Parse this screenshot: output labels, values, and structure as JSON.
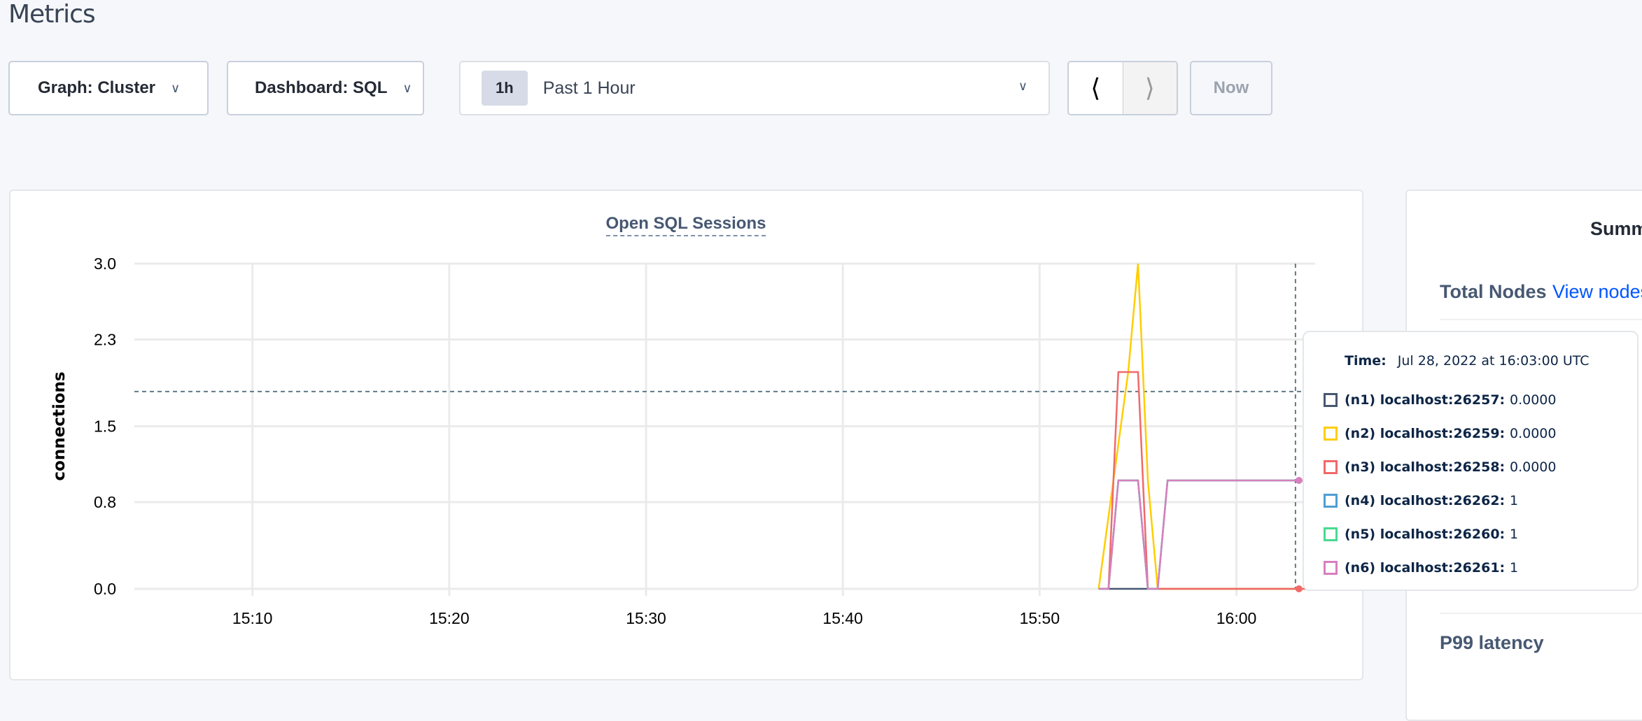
{
  "page": {
    "title": "Metrics"
  },
  "toolbar": {
    "graph_label": "Graph: Cluster",
    "dashboard_label": "Dashboard: SQL",
    "range_badge": "1h",
    "range_label": "Past 1 Hour",
    "prev_icon": "chevron-left-icon",
    "next_icon": "chevron-right-icon",
    "now_label": "Now"
  },
  "chart_data": {
    "type": "line",
    "title": "Open SQL Sessions",
    "ylabel": "connections",
    "xlabel": "",
    "xlim": [
      "15:04",
      "16:04"
    ],
    "ylim": [
      0,
      3
    ],
    "x_ticks": [
      "15:10",
      "15:20",
      "15:30",
      "15:40",
      "15:50",
      "16:00"
    ],
    "y_ticks": [
      "0.0",
      "0.8",
      "1.5",
      "2.3",
      "3.0"
    ],
    "grid": true,
    "hover": {
      "time": "16:03",
      "value": 1.82
    },
    "series": [
      {
        "name": "(n1) localhost:26257",
        "color": "#475872",
        "points": [
          [
            "15:53",
            0
          ],
          [
            "16:04",
            0
          ]
        ]
      },
      {
        "name": "(n2) localhost:26259",
        "color": "#FFCD02",
        "points": [
          [
            "15:53",
            0
          ],
          [
            "15:54:30",
            2
          ],
          [
            "15:55",
            3
          ],
          [
            "15:55:30",
            1
          ],
          [
            "15:56",
            0
          ],
          [
            "16:04",
            0
          ]
        ]
      },
      {
        "name": "(n3) localhost:26258",
        "color": "#F16969",
        "points": [
          [
            "15:53",
            0
          ],
          [
            "15:53:30",
            0
          ],
          [
            "15:54",
            2
          ],
          [
            "15:55",
            2
          ],
          [
            "15:55:30",
            0
          ],
          [
            "16:04",
            0
          ]
        ]
      },
      {
        "name": "(n4) localhost:26262",
        "color": "#4E9FD1",
        "points": [
          [
            "15:53",
            0
          ],
          [
            "15:53:30",
            0
          ],
          [
            "15:54",
            1
          ],
          [
            "15:55",
            1
          ],
          [
            "15:55:30",
            0
          ],
          [
            "15:56",
            0
          ],
          [
            "15:56:30",
            1
          ],
          [
            "16:04",
            1
          ]
        ]
      },
      {
        "name": "(n5) localhost:26260",
        "color": "#49D990",
        "points": [
          [
            "15:53",
            0
          ],
          [
            "15:53:30",
            0
          ],
          [
            "15:54",
            1
          ],
          [
            "15:55",
            1
          ],
          [
            "15:55:30",
            0
          ],
          [
            "15:56",
            0
          ],
          [
            "15:56:30",
            1
          ],
          [
            "16:04",
            1
          ]
        ]
      },
      {
        "name": "(n6) localhost:26261",
        "color": "#D77FBF",
        "points": [
          [
            "15:53",
            0
          ],
          [
            "15:53:30",
            0
          ],
          [
            "15:54",
            1
          ],
          [
            "15:55",
            1
          ],
          [
            "15:55:30",
            0
          ],
          [
            "15:56",
            0
          ],
          [
            "15:56:30",
            1
          ],
          [
            "16:04",
            1
          ]
        ]
      }
    ]
  },
  "tooltip": {
    "time_label": "Time:",
    "time_value": "Jul 28, 2022 at 16:03:00 UTC",
    "rows": [
      {
        "name": "(n1) localhost:26257:",
        "value": "0.0000",
        "color": "#475872"
      },
      {
        "name": "(n2) localhost:26259:",
        "value": "0.0000",
        "color": "#FFCD02"
      },
      {
        "name": "(n3) localhost:26258:",
        "value": "0.0000",
        "color": "#F16969"
      },
      {
        "name": "(n4) localhost:26262:",
        "value": "1",
        "color": "#4E9FD1"
      },
      {
        "name": "(n5) localhost:26260:",
        "value": "1",
        "color": "#49D990"
      },
      {
        "name": "(n6) localhost:26261:",
        "value": "1",
        "color": "#D77FBF"
      }
    ]
  },
  "summary": {
    "title": "Summ",
    "total_nodes_label": "Total Nodes",
    "view_nodes_link": "View nodes",
    "p99_label": "P99 latency"
  }
}
